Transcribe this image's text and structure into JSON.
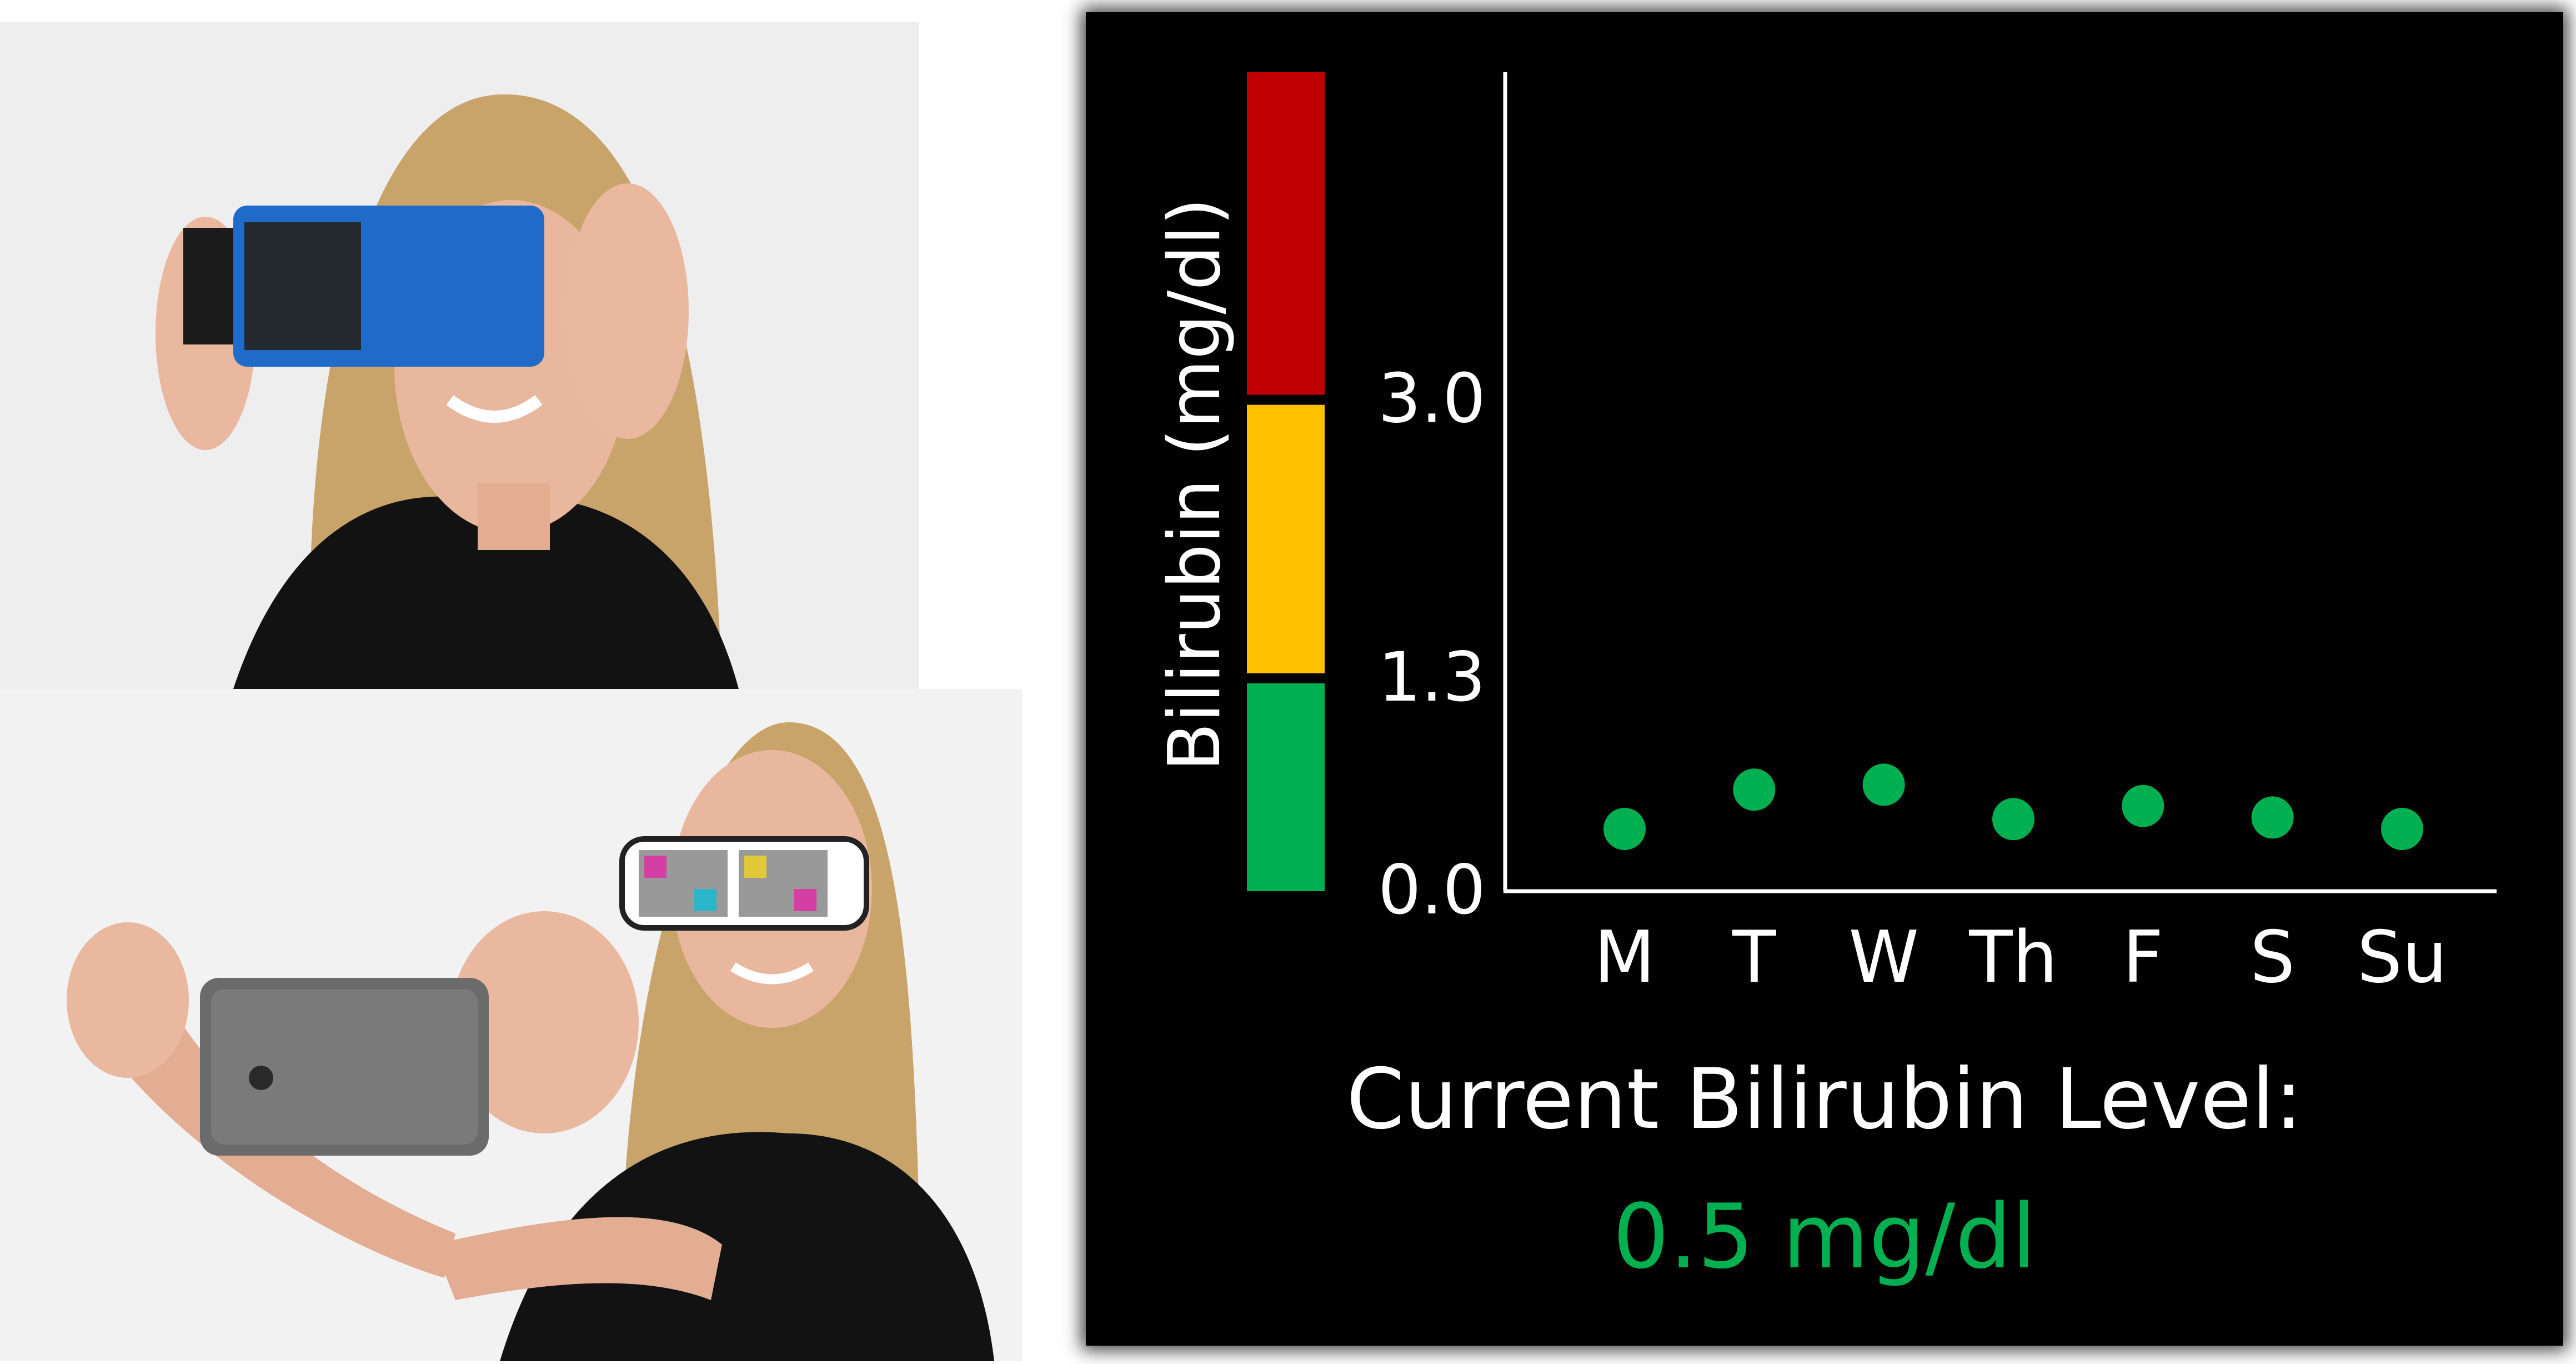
{
  "colors": {
    "panel_background": "#000000",
    "text": "#ffffff",
    "point": "#00b050",
    "reading": "#00b050",
    "zone_high": "#c00000",
    "zone_mid": "#ffc000",
    "zone_normal": "#00b050"
  },
  "photos": [
    {
      "name": "person-using-blue-viewer-box"
    },
    {
      "name": "person-with-calibration-glasses-and-phone"
    }
  ],
  "chart_data": {
    "type": "scatter",
    "ylabel": "Bilirubin (mg/dl)",
    "xlabel": "",
    "categories": [
      "M",
      "T",
      "W",
      "Th",
      "F",
      "S",
      "Su"
    ],
    "series": [
      {
        "values": [
          0.38,
          0.62,
          0.65,
          0.44,
          0.52,
          0.45,
          0.38
        ]
      }
    ],
    "ylim": [
      0.0,
      5.0
    ],
    "yticks": [
      {
        "value": 0.0,
        "label": "0.0"
      },
      {
        "value": 1.3,
        "label": "1.3"
      },
      {
        "value": 3.0,
        "label": "3.0"
      }
    ],
    "zones": [
      {
        "from": 0.0,
        "to": 1.3,
        "color": "#00b050"
      },
      {
        "from": 1.3,
        "to": 3.0,
        "color": "#ffc000"
      },
      {
        "from": 3.0,
        "to": 5.0,
        "color": "#c00000"
      }
    ],
    "grid": false,
    "legend": "none"
  },
  "readout": {
    "label": "Current Bilirubin Level:",
    "value": "0.5 mg/dl"
  }
}
